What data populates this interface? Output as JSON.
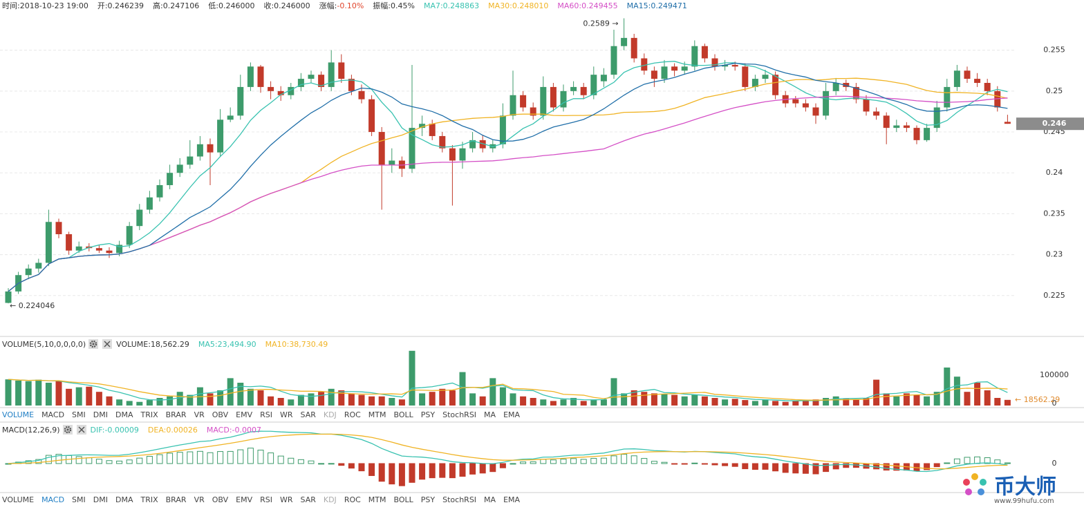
{
  "header": {
    "time": "时间:2018-10-23 19:00",
    "open": "开:0.246239",
    "high": "高:0.247106",
    "low": "低:0.246000",
    "close": "收:0.246000",
    "change_label": "涨幅:",
    "change_value": "-0.10%",
    "amplitude": "振幅:0.45%"
  },
  "chart_data": {
    "type": "candlestick",
    "open": [
      0.2241,
      0.2255,
      0.2275,
      0.2283,
      0.229,
      0.234,
      0.2325,
      0.2305,
      0.231,
      0.2308,
      0.2305,
      0.2302,
      0.2312,
      0.2335,
      0.2355,
      0.237,
      0.2385,
      0.24,
      0.241,
      0.242,
      0.2435,
      0.2425,
      0.2465,
      0.247,
      0.2505,
      0.253,
      0.2505,
      0.25,
      0.2495,
      0.2505,
      0.2515,
      0.252,
      0.2505,
      0.2535,
      0.2515,
      0.25,
      0.249,
      0.245,
      0.241,
      0.2415,
      0.2405,
      0.2455,
      0.246,
      0.2445,
      0.243,
      0.2415,
      0.243,
      0.244,
      0.243,
      0.2435,
      0.247,
      0.2495,
      0.248,
      0.247,
      0.2505,
      0.248,
      0.25,
      0.2505,
      0.2495,
      0.2512,
      0.252,
      0.2555,
      0.2565,
      0.254,
      0.2525,
      0.2515,
      0.253,
      0.2525,
      0.253,
      0.2555,
      0.254,
      0.253,
      0.2532,
      0.253,
      0.2505,
      0.2515,
      0.252,
      0.2495,
      0.249,
      0.2485,
      0.248,
      0.247,
      0.25,
      0.251,
      0.2505,
      0.249,
      0.2475,
      0.247,
      0.2455,
      0.2458,
      0.2455,
      0.244,
      0.2455,
      0.248,
      0.2505,
      0.2525,
      0.2515,
      0.251,
      0.25,
      0.246239
    ],
    "high": [
      0.2259,
      0.2279,
      0.2288,
      0.2295,
      0.2355,
      0.2344,
      0.2328,
      0.2316,
      0.2314,
      0.2312,
      0.2309,
      0.2317,
      0.234,
      0.2362,
      0.2378,
      0.2392,
      0.241,
      0.2418,
      0.244,
      0.2445,
      0.2442,
      0.2478,
      0.248,
      0.252,
      0.2535,
      0.2532,
      0.2512,
      0.2506,
      0.251,
      0.2522,
      0.2525,
      0.2524,
      0.255,
      0.2545,
      0.252,
      0.2508,
      0.2495,
      0.2456,
      0.243,
      0.242,
      0.2532,
      0.247,
      0.2465,
      0.245,
      0.2434,
      0.2438,
      0.245,
      0.2446,
      0.244,
      0.2485,
      0.2525,
      0.25,
      0.2486,
      0.2518,
      0.251,
      0.2508,
      0.2512,
      0.251,
      0.253,
      0.2528,
      0.2575,
      0.2589,
      0.257,
      0.2546,
      0.253,
      0.2538,
      0.2534,
      0.2536,
      0.2562,
      0.2558,
      0.2545,
      0.2538,
      0.2536,
      0.2534,
      0.252,
      0.2526,
      0.2524,
      0.25,
      0.2494,
      0.249,
      0.2485,
      0.251,
      0.2516,
      0.2514,
      0.251,
      0.2495,
      0.248,
      0.2474,
      0.2465,
      0.2462,
      0.2458,
      0.246,
      0.2488,
      0.2515,
      0.2532,
      0.253,
      0.2522,
      0.2515,
      0.2506,
      0.247106
    ],
    "low": [
      0.224046,
      0.2252,
      0.227,
      0.2278,
      0.2286,
      0.232,
      0.23,
      0.2302,
      0.2304,
      0.2302,
      0.2296,
      0.2298,
      0.2308,
      0.233,
      0.235,
      0.2365,
      0.238,
      0.2395,
      0.2405,
      0.2415,
      0.2385,
      0.242,
      0.2462,
      0.2465,
      0.25,
      0.2498,
      0.249,
      0.2488,
      0.249,
      0.25,
      0.251,
      0.25,
      0.25,
      0.251,
      0.2495,
      0.2485,
      0.2445,
      0.2355,
      0.24,
      0.2395,
      0.24,
      0.2445,
      0.244,
      0.2425,
      0.236,
      0.2405,
      0.2425,
      0.2425,
      0.2425,
      0.243,
      0.2465,
      0.2475,
      0.2465,
      0.2465,
      0.2475,
      0.2475,
      0.2495,
      0.249,
      0.249,
      0.2505,
      0.2515,
      0.255,
      0.2535,
      0.252,
      0.2505,
      0.251,
      0.2518,
      0.252,
      0.2525,
      0.2535,
      0.2525,
      0.2525,
      0.2525,
      0.25,
      0.25,
      0.251,
      0.249,
      0.248,
      0.248,
      0.2475,
      0.246,
      0.2465,
      0.2495,
      0.25,
      0.2485,
      0.247,
      0.2465,
      0.2435,
      0.245,
      0.245,
      0.2435,
      0.2438,
      0.245,
      0.2475,
      0.25,
      0.251,
      0.2505,
      0.2495,
      0.2475,
      0.246
    ],
    "close": [
      0.2255,
      0.2275,
      0.2283,
      0.229,
      0.234,
      0.2325,
      0.2305,
      0.231,
      0.2308,
      0.2305,
      0.2302,
      0.2312,
      0.2335,
      0.2355,
      0.237,
      0.2385,
      0.24,
      0.241,
      0.242,
      0.2435,
      0.2425,
      0.2465,
      0.247,
      0.2505,
      0.253,
      0.2505,
      0.25,
      0.2495,
      0.2505,
      0.2515,
      0.252,
      0.2505,
      0.2535,
      0.2515,
      0.25,
      0.249,
      0.245,
      0.241,
      0.2415,
      0.2405,
      0.2455,
      0.246,
      0.2445,
      0.243,
      0.2415,
      0.243,
      0.244,
      0.243,
      0.2435,
      0.247,
      0.2495,
      0.248,
      0.247,
      0.2505,
      0.248,
      0.25,
      0.2505,
      0.2495,
      0.252,
      0.252,
      0.2555,
      0.2565,
      0.254,
      0.2525,
      0.2515,
      0.253,
      0.2525,
      0.253,
      0.2555,
      0.254,
      0.253,
      0.2532,
      0.253,
      0.2505,
      0.2515,
      0.252,
      0.2495,
      0.2485,
      0.2485,
      0.248,
      0.247,
      0.25,
      0.251,
      0.2505,
      0.249,
      0.2475,
      0.247,
      0.2455,
      0.2458,
      0.2455,
      0.244,
      0.2455,
      0.248,
      0.2505,
      0.2525,
      0.2515,
      0.251,
      0.25,
      0.248,
      0.246
    ],
    "up_color": "#3d9b6b",
    "down_color": "#c23a2a",
    "ylim": [
      0.22,
      0.2597
    ],
    "yticks": [
      0.225,
      0.23,
      0.235,
      0.24,
      0.245,
      0.25,
      0.255
    ],
    "grid": true,
    "last_price": 0.246,
    "max_label": "0.2589 →",
    "min_label": "← 0.224046",
    "ma_lines": [
      {
        "label": "MA7:0.248863",
        "period": 7,
        "color": "#38c2b0"
      },
      {
        "label": "MA30:0.248010",
        "period": 30,
        "color": "#f0b323"
      },
      {
        "label": "MA60:0.249455",
        "period": 60,
        "color": "#d44fc6"
      },
      {
        "label": "MA15:0.249471",
        "period": 15,
        "color": "#1f6ea8"
      }
    ],
    "volume": {
      "title": "VOLUME(5,10,0,0,0,0)",
      "current": "VOLUME:18,562.29",
      "ma_lines": [
        {
          "label": "MA5:23,494.90",
          "period": 5,
          "color": "#38c2b0"
        },
        {
          "label": "MA10:38,730.49",
          "period": 10,
          "color": "#f0b323"
        }
      ],
      "values": [
        86000,
        82000,
        80000,
        85000,
        75000,
        82000,
        55000,
        60000,
        62000,
        45000,
        30000,
        20000,
        15000,
        12000,
        18000,
        25000,
        30000,
        45000,
        35000,
        60000,
        40000,
        50000,
        90000,
        75000,
        55000,
        50000,
        30000,
        25000,
        20000,
        35000,
        40000,
        45000,
        55000,
        50000,
        40000,
        35000,
        30000,
        30000,
        25000,
        20000,
        180000,
        40000,
        45000,
        55000,
        50000,
        110000,
        40000,
        30000,
        90000,
        60000,
        40000,
        30000,
        25000,
        20000,
        15000,
        20000,
        25000,
        15000,
        18000,
        20000,
        90000,
        40000,
        50000,
        45000,
        40000,
        38000,
        35000,
        30000,
        35000,
        30000,
        25000,
        20000,
        22000,
        18000,
        15000,
        20000,
        15000,
        12000,
        15000,
        18000,
        20000,
        25000,
        30000,
        22000,
        20000,
        25000,
        85000,
        40000,
        30000,
        40000,
        35000,
        30000,
        45000,
        125000,
        95000,
        45000,
        75000,
        50000,
        25000,
        18562.29
      ],
      "ylim": [
        0,
        200000
      ],
      "yticks": [
        0,
        100000
      ],
      "last_label": "← 18562.29"
    },
    "macd": {
      "title": "MACD(12,26,9)",
      "periods": [
        12,
        26,
        9
      ],
      "dif_label": "DIF:-0.00009",
      "dea_label": "DEA:0.00026",
      "macd_label": "MACD:-0.0007",
      "dif_color": "#38c2b0",
      "dea_color": "#f0b323",
      "macd_color": "#d44fc6",
      "ylim": [
        -0.005,
        0.005
      ],
      "yticks": [
        0
      ]
    }
  },
  "indicator_tabs": [
    "VOLUME",
    "MACD",
    "SMI",
    "DMI",
    "DMA",
    "TRIX",
    "BRAR",
    "VR",
    "OBV",
    "EMV",
    "RSI",
    "WR",
    "SAR",
    "KDJ",
    "ROC",
    "MTM",
    "BOLL",
    "PSY",
    "StochRSI",
    "MA",
    "EMA"
  ],
  "volume_active_tab": 0,
  "macd_active_tab": 1,
  "dim_tab": 13,
  "watermark": {
    "brand": "币大师",
    "url": "www.99hufu.com"
  }
}
